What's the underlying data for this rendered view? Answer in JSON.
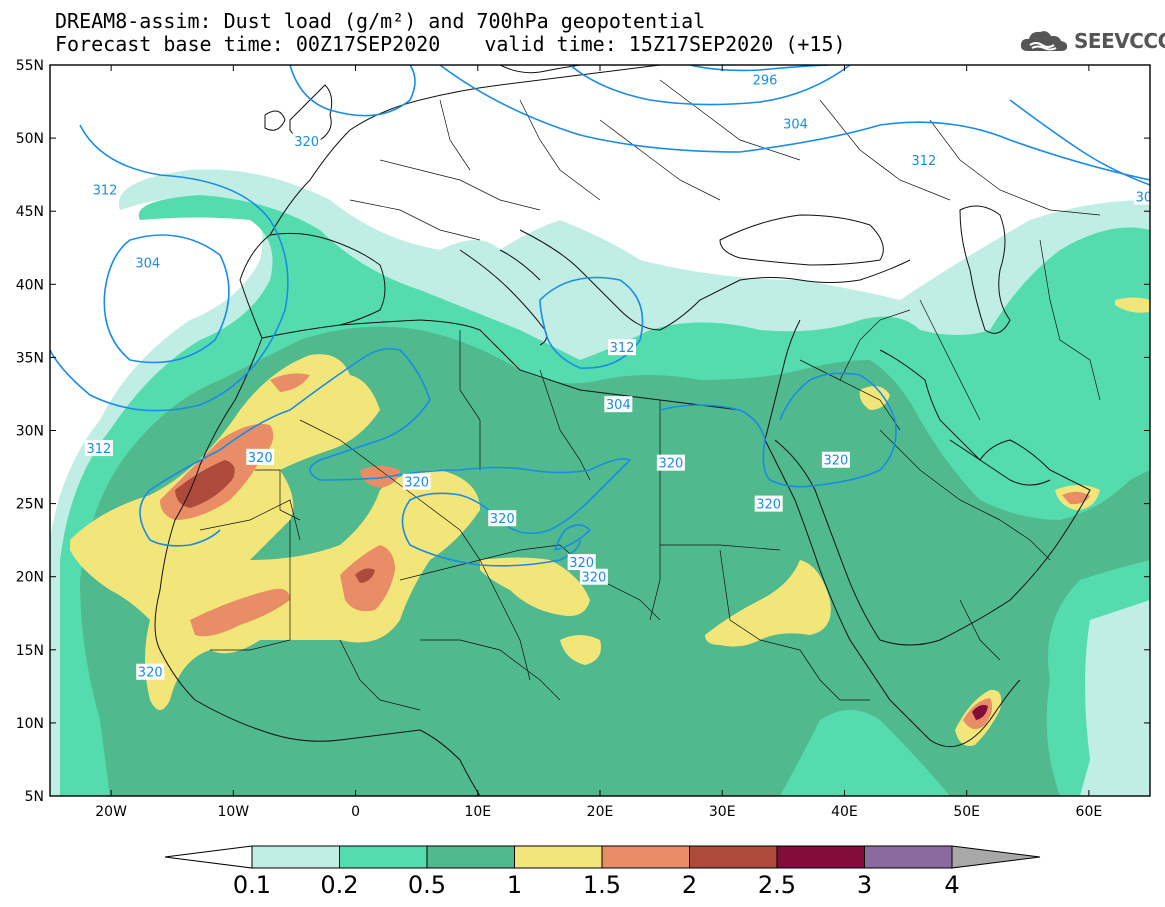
{
  "header": {
    "title_line1": "DREAM8-assim: Dust load (g/m²) and 700hPa geopotential",
    "forecast_base": "Forecast base time: 00Z17SEP2020",
    "valid_time": "valid time: 15Z17SEP2020 (+15)"
  },
  "logo": {
    "text": "SEEVCCC",
    "icon": "cloud-icon"
  },
  "map": {
    "lon_range": [
      -25,
      65
    ],
    "lat_range": [
      5,
      55
    ],
    "lat_labels": [
      "55N",
      "50N",
      "45N",
      "40N",
      "35N",
      "30N",
      "25N",
      "20N",
      "15N",
      "10N",
      "5N"
    ],
    "lon_labels": [
      "20W",
      "10W",
      "0",
      "10E",
      "20E",
      "30E",
      "40E",
      "50E",
      "60E"
    ],
    "contour_color": "#1a8ce6",
    "contour_labels": [
      {
        "text": "296",
        "lon": 33.5,
        "lat": 54.0
      },
      {
        "text": "304",
        "lon": 36.0,
        "lat": 51.0
      },
      {
        "text": "312",
        "lon": 46.5,
        "lat": 48.5
      },
      {
        "text": "30",
        "lon": 64.5,
        "lat": 46.0
      },
      {
        "text": "320",
        "lon": -4.0,
        "lat": 49.8
      },
      {
        "text": "312",
        "lon": -20.5,
        "lat": 46.5
      },
      {
        "text": "304",
        "lon": -17.0,
        "lat": 41.5
      },
      {
        "text": "312",
        "lon": -21.0,
        "lat": 28.8
      },
      {
        "text": "312",
        "lon": 21.8,
        "lat": 35.7
      },
      {
        "text": "304",
        "lon": 21.5,
        "lat": 31.8
      },
      {
        "text": "320",
        "lon": -7.8,
        "lat": 28.2
      },
      {
        "text": "320",
        "lon": 5.0,
        "lat": 26.5
      },
      {
        "text": "320",
        "lon": 12.0,
        "lat": 24.0
      },
      {
        "text": "320",
        "lon": 18.5,
        "lat": 21.0
      },
      {
        "text": "320",
        "lon": 19.5,
        "lat": 20.0
      },
      {
        "text": "320",
        "lon": -16.8,
        "lat": 13.5
      },
      {
        "text": "320",
        "lon": 25.8,
        "lat": 27.8
      },
      {
        "text": "320",
        "lon": 39.3,
        "lat": 28.0
      },
      {
        "text": "320",
        "lon": 33.8,
        "lat": 25.0
      }
    ]
  },
  "colorbar": {
    "labels": [
      "0.1",
      "0.2",
      "0.5",
      "1",
      "1.5",
      "2",
      "2.5",
      "3",
      "4"
    ],
    "colors": [
      "#c0ede4",
      "#55dcae",
      "#50b98d",
      "#f2e67a",
      "#e88d65",
      "#ad4a3c",
      "#820d3b",
      "#8b6aa0"
    ],
    "over_color": "#a8a8a8",
    "under_color": "#ffffff"
  },
  "dust_colors": {
    "c0": "#c0ede4",
    "c1": "#55dcae",
    "c2": "#50b98d",
    "c3": "#f2e67a",
    "c4": "#e88d65",
    "c5": "#ad4a3c",
    "c6": "#820d3b"
  }
}
